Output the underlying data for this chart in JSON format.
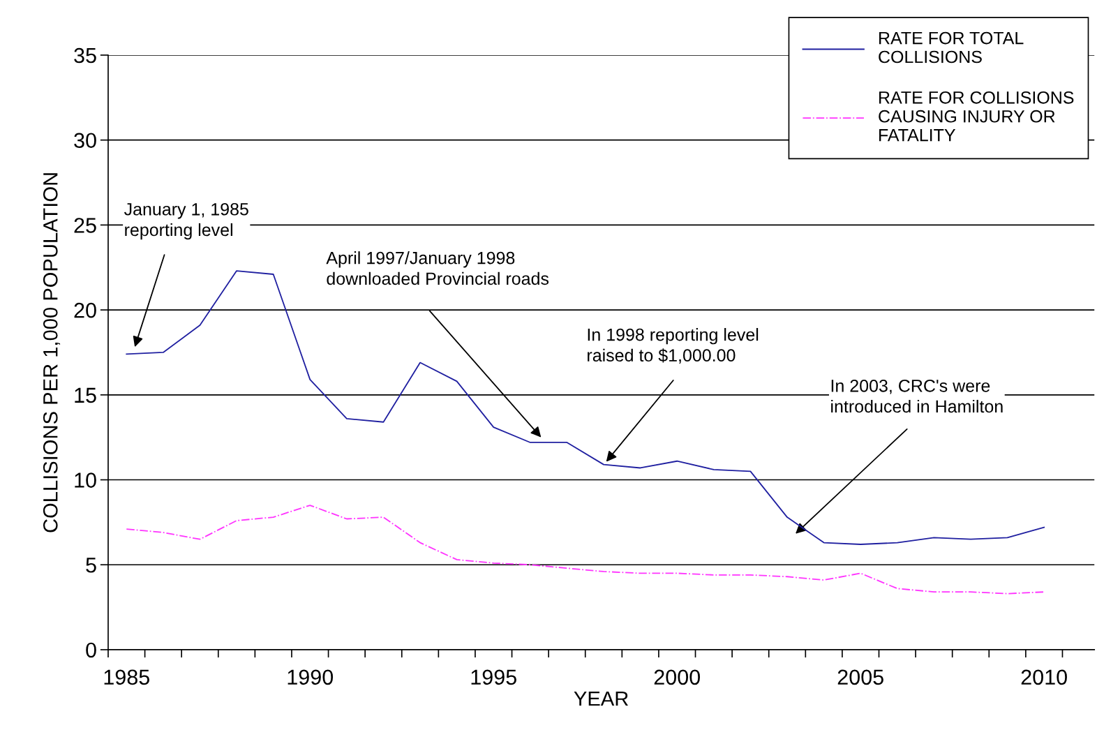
{
  "chart_data": {
    "type": "line",
    "xlabel": "YEAR",
    "ylabel": "COLLISIONS PER 1,000 POPULATION",
    "categories": [
      "1985",
      null,
      null,
      null,
      null,
      "1990",
      null,
      null,
      null,
      null,
      "1995",
      null,
      null,
      null,
      null,
      "2000",
      null,
      null,
      null,
      null,
      "2005",
      null,
      null,
      null,
      null,
      "2010"
    ],
    "series": [
      {
        "name": "RATE FOR TOTAL COLLISIONS",
        "color": "#1f1fa0",
        "line_style": "solid",
        "values": [
          17.4,
          17.5,
          19.1,
          22.3,
          22.1,
          15.9,
          13.6,
          13.4,
          16.9,
          15.8,
          13.1,
          12.2,
          12.2,
          10.9,
          10.7,
          11.1,
          10.6,
          10.5,
          7.8,
          6.3,
          6.2,
          6.3,
          6.6,
          6.5,
          6.6,
          7.2
        ]
      },
      {
        "name": "RATE FOR COLLISIONS CAUSING INJURY OR FATALITY",
        "color": "#ff33ff",
        "line_style": "dashdot",
        "values": [
          7.1,
          6.9,
          6.5,
          7.6,
          7.8,
          8.5,
          7.7,
          7.8,
          6.3,
          5.3,
          5.1,
          5.0,
          4.8,
          4.6,
          4.5,
          4.5,
          4.4,
          4.4,
          4.3,
          4.1,
          4.5,
          3.6,
          3.4,
          3.4,
          3.3,
          3.4
        ]
      }
    ],
    "ylim": [
      0,
      35
    ],
    "yticks": [
      0,
      5,
      10,
      15,
      20,
      25,
      30,
      35
    ],
    "grid": "y",
    "legend": "top right",
    "marker": "none",
    "annotations": [
      "January 1, 1985\nreporting level",
      "April 1997/January 1998\ndownloaded Provincial roads",
      "In 1998 reporting level\nraised to $1,000.00",
      "In 2003, CRC's were\nintroduced in Hamilton"
    ]
  }
}
